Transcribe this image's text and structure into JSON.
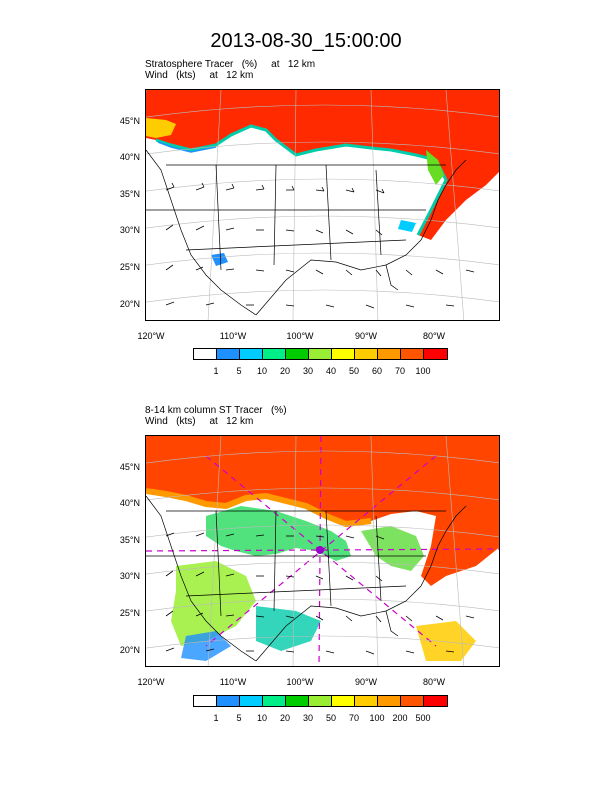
{
  "main_title": "2013-08-30_15:00:00",
  "panels": [
    {
      "title_line1": "Stratosphere Tracer   (%)     at   12 km",
      "title_line2": "Wind   (kts)     at   12 km",
      "lat_labels": [
        "45°N",
        "40°N",
        "35°N",
        "30°N",
        "25°N",
        "20°N"
      ],
      "lon_labels": [
        "120°W",
        "110°W",
        "100°W",
        "90°W",
        "80°W"
      ],
      "colorbar_colors": [
        "#ffffff",
        "#1e90ff",
        "#00ccff",
        "#00ee88",
        "#00cc00",
        "#99ee33",
        "#ffff00",
        "#ffcc00",
        "#ff9900",
        "#ff5500",
        "#ff0000"
      ],
      "colorbar_labels": [
        "1",
        "5",
        "10",
        "20",
        "30",
        "40",
        "50",
        "60",
        "70",
        "100"
      ]
    },
    {
      "title_line1": "8-14 km column ST Tracer   (%)",
      "title_line2": "Wind   (kts)     at   12 km",
      "lat_labels": [
        "45°N",
        "40°N",
        "35°N",
        "30°N",
        "25°N",
        "20°N"
      ],
      "lon_labels": [
        "120°W",
        "110°W",
        "100°W",
        "90°W",
        "80°W"
      ],
      "colorbar_colors": [
        "#ffffff",
        "#1e90ff",
        "#00ccff",
        "#00ee88",
        "#00cc00",
        "#99ee33",
        "#ffff00",
        "#ffcc00",
        "#ff9900",
        "#ff5500",
        "#ff0000"
      ],
      "colorbar_labels": [
        "1",
        "5",
        "10",
        "20",
        "30",
        "50",
        "70",
        "100",
        "200",
        "500"
      ]
    }
  ]
}
